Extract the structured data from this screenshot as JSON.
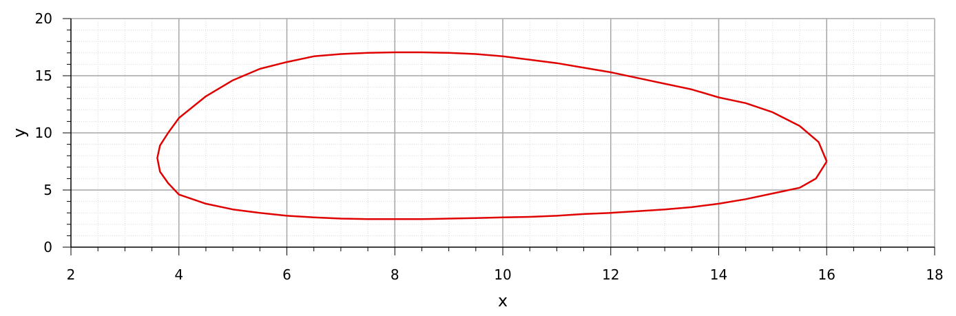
{
  "chart_data": {
    "type": "line",
    "title": "",
    "xlabel": "x",
    "ylabel": "y",
    "xlim": [
      2,
      18
    ],
    "ylim": [
      0,
      20
    ],
    "x_ticks": [
      2,
      4,
      6,
      8,
      10,
      12,
      14,
      16,
      18
    ],
    "y_ticks": [
      0,
      5,
      10,
      15,
      20
    ],
    "x_tick_labels": [
      "2",
      "4",
      "6",
      "8",
      "10",
      "12",
      "14",
      "16",
      "18"
    ],
    "y_tick_labels": [
      "0",
      "5",
      "10",
      "15",
      "20"
    ],
    "grid": true,
    "minor_grid": true,
    "legend": "none",
    "colors": {
      "series": "#e00000",
      "major_grid": "#a6a6a6",
      "minor_grid": "#d9d9d9",
      "axis": "#000000"
    },
    "series": [
      {
        "x": [
          16.0,
          15.85,
          15.5,
          15.0,
          14.5,
          14.0,
          13.5,
          13.0,
          12.5,
          12.0,
          11.5,
          11.0,
          10.5,
          10.0,
          9.5,
          9.0,
          8.5,
          8.0,
          7.5,
          7.0,
          6.5,
          6.0,
          5.5,
          5.0,
          4.5,
          4.0,
          3.8,
          3.65,
          3.6,
          3.65,
          3.8,
          4.0,
          4.5,
          5.0,
          5.5,
          6.0,
          6.5,
          7.0,
          7.5,
          8.0,
          8.5,
          9.0,
          9.5,
          10.0,
          10.5,
          11.0,
          11.5,
          12.0,
          12.5,
          13.0,
          13.5,
          14.0,
          14.5,
          15.0,
          15.5,
          15.8,
          16.0
        ],
        "y": [
          7.5,
          9.2,
          10.6,
          11.8,
          12.6,
          13.1,
          13.8,
          14.3,
          14.8,
          15.3,
          15.7,
          16.1,
          16.4,
          16.7,
          16.9,
          17.0,
          17.05,
          17.05,
          17.0,
          16.9,
          16.7,
          16.2,
          15.6,
          14.6,
          13.2,
          11.3,
          10.0,
          8.9,
          7.8,
          6.6,
          5.6,
          4.6,
          3.8,
          3.3,
          3.0,
          2.75,
          2.6,
          2.5,
          2.45,
          2.45,
          2.45,
          2.5,
          2.55,
          2.6,
          2.65,
          2.75,
          2.9,
          3.0,
          3.15,
          3.3,
          3.5,
          3.8,
          4.2,
          4.7,
          5.2,
          6.0,
          7.5
        ]
      }
    ]
  }
}
